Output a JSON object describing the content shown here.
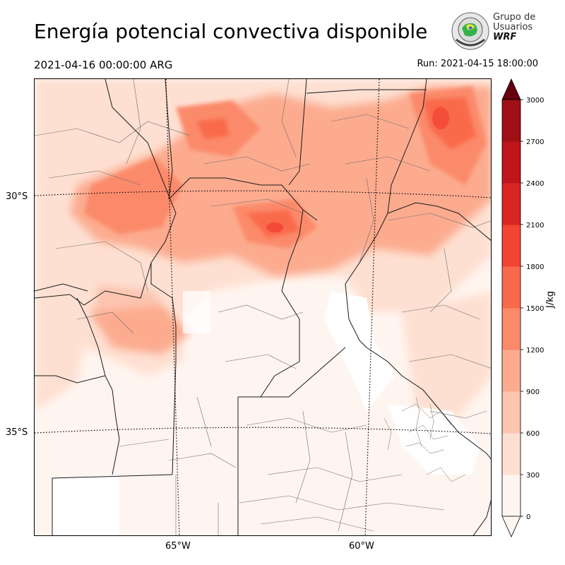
{
  "header": {
    "title": "Energía potencial convectiva disponible",
    "valid_time": "2021-04-16 00:00:00 ARG",
    "run_time": "Run: 2021-04-15 18:00:00"
  },
  "logo": {
    "line1": "Grupo de",
    "line2": "Usuarios",
    "line3": "WRF",
    "icon": "globe-logo-icon"
  },
  "map": {
    "lat_labels": [
      "30°S",
      "35°S"
    ],
    "lon_labels": [
      "65°W",
      "60°W"
    ]
  },
  "colorbar": {
    "unit": "J/kg",
    "ticks": [
      "0",
      "300",
      "600",
      "900",
      "1200",
      "1500",
      "1800",
      "2100",
      "2400",
      "2700",
      "3000"
    ],
    "colors": [
      "#fff5f0",
      "#fee0d2",
      "#fcc5b0",
      "#fcab8f",
      "#fb8a6a",
      "#f96a4c",
      "#f14432",
      "#d92523",
      "#bd151a",
      "#a00f15",
      "#7f0a0f"
    ],
    "extend_color": "#67000d"
  },
  "palette": {
    "background": "#fff5f0",
    "borders": "#1a1a1a",
    "departments": "#6d6d6d"
  }
}
